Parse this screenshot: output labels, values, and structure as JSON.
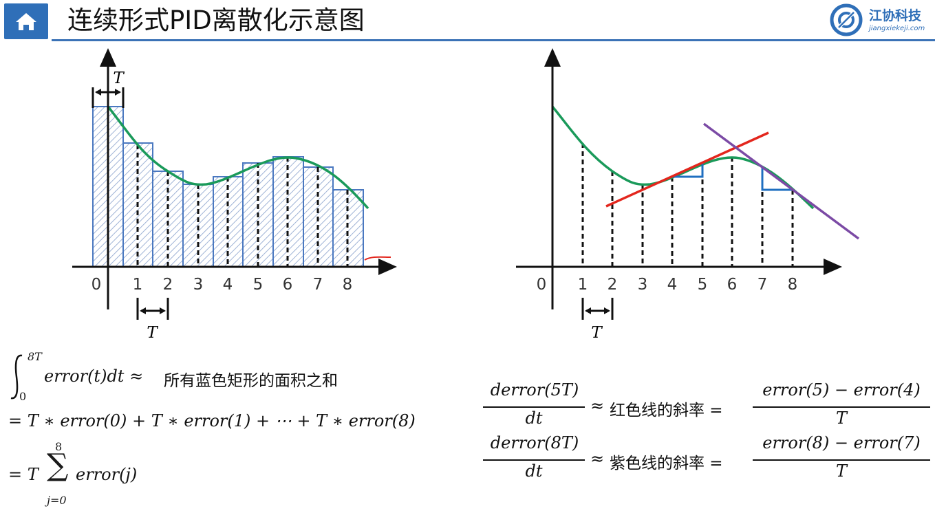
{
  "header": {
    "title": "连续形式PID离散化示意图",
    "logo_name": "江协科技",
    "logo_url": "jiangxiekeji.com"
  },
  "left_diagram": {
    "tick_labels": [
      "0",
      "1",
      "2",
      "3",
      "4",
      "5",
      "6",
      "7",
      "8"
    ],
    "period_label_top": "T",
    "period_label_bottom": "T"
  },
  "right_diagram": {
    "tick_labels": [
      "0",
      "1",
      "2",
      "3",
      "4",
      "5",
      "6",
      "7",
      "8"
    ],
    "period_label_bottom": "T"
  },
  "integral": {
    "upper": "8T",
    "lower": "0",
    "expr": "error(t)dt ≈",
    "text": "所有蓝色矩形的面积之和",
    "line2": "= T ∗ error(0) + T ∗ error(1) + ⋯ + T ∗ error(8)",
    "line3_prefix": "= T",
    "sum_upper": "8",
    "sum_lower": "j=0",
    "line3_expr": "error(j)"
  },
  "derivative1": {
    "numerator": "derror(5T)",
    "denominator": "dt",
    "approx": "≈",
    "text": "红色线的斜率 =",
    "rhs_numerator": "error(5) − error(4)",
    "rhs_denominator": "T"
  },
  "derivative2": {
    "numerator": "derror(8T)",
    "denominator": "dt",
    "approx": "≈",
    "text": "紫色线的斜率 =",
    "rhs_numerator": "error(8) − error(7)",
    "rhs_denominator": "T"
  },
  "colors": {
    "header_blue": "#2f6fb8",
    "curve_green": "#1a9a5a",
    "rect_blue": "#4a78c0",
    "red_line": "#e3261d",
    "purple_line": "#7b4aa5",
    "step_blue": "#1f6fc0"
  }
}
